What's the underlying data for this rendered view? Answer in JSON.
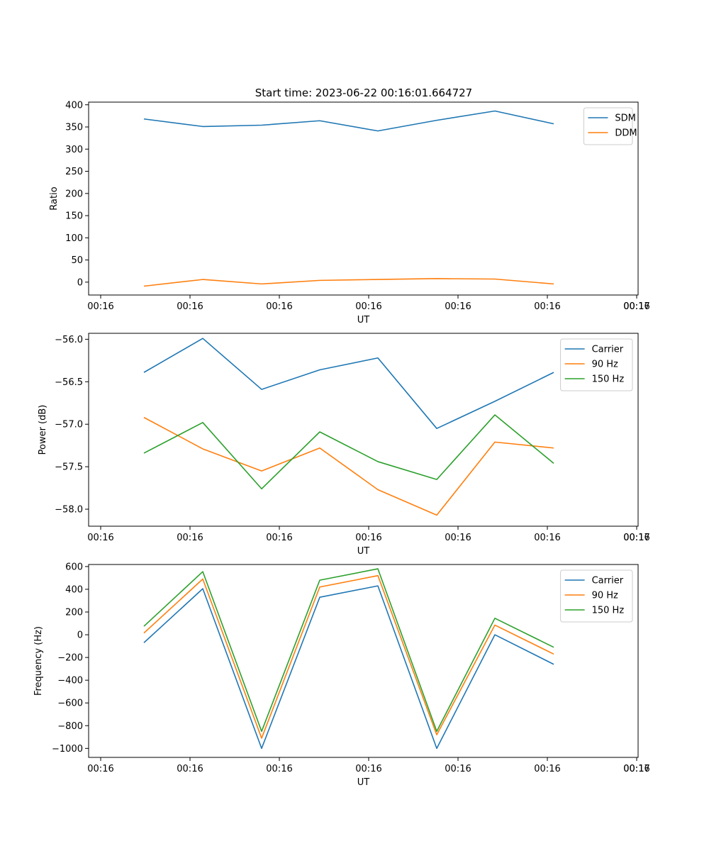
{
  "figure_title": "Start time: 2023-06-22 00:16:01.664727",
  "colors": {
    "blue": "#1f77b4",
    "orange": "#ff7f0e",
    "green": "#2ca02c"
  },
  "chart_data": [
    {
      "type": "line",
      "title": "Start time: 2023-06-22 00:16:01.664727",
      "xlabel": "UT",
      "ylabel": "Ratio",
      "x_tick_labels": [
        "00:16",
        "00:16",
        "00:16",
        "00:16",
        "00:16",
        "00:16",
        "00:16",
        "00:17"
      ],
      "y_ticks": [
        0,
        50,
        100,
        150,
        200,
        250,
        300,
        350,
        400
      ],
      "y_tick_labels": [
        "0",
        "50",
        "100",
        "150",
        "200",
        "250",
        "300",
        "350",
        "400"
      ],
      "ylim": [
        -29,
        406
      ],
      "legend_position": "top-right",
      "series": [
        {
          "name": "SDM",
          "values": [
            368,
            351,
            354,
            364,
            341,
            365,
            386,
            357
          ]
        },
        {
          "name": "DDM",
          "values": [
            -9,
            6,
            -4,
            4,
            6,
            8,
            7,
            -4
          ]
        }
      ]
    },
    {
      "type": "line",
      "title": "",
      "xlabel": "UT",
      "ylabel": "Power (dB)",
      "x_tick_labels": [
        "00:16",
        "00:16",
        "00:16",
        "00:16",
        "00:16",
        "00:16",
        "00:16",
        "00:17"
      ],
      "y_ticks": [
        -56.0,
        -56.5,
        -57.0,
        -57.5,
        -58.0
      ],
      "y_tick_labels": [
        "−56.0",
        "−56.5",
        "−57.0",
        "−57.5",
        "−58.0"
      ],
      "ylim": [
        -58.2,
        -55.93
      ],
      "legend_position": "top-right",
      "series": [
        {
          "name": "Carrier",
          "values": [
            -56.39,
            -55.99,
            -56.59,
            -56.36,
            -56.22,
            -57.05,
            -56.73,
            -56.39
          ]
        },
        {
          "name": "90 Hz",
          "values": [
            -56.92,
            -57.29,
            -57.55,
            -57.28,
            -57.77,
            -58.07,
            -57.21,
            -57.28
          ]
        },
        {
          "name": "150 Hz",
          "values": [
            -57.34,
            -56.98,
            -57.76,
            -57.09,
            -57.44,
            -57.65,
            -56.89,
            -57.46
          ]
        }
      ]
    },
    {
      "type": "line",
      "title": "",
      "xlabel": "UT",
      "ylabel": "Frequency (Hz)",
      "x_tick_labels": [
        "00:16",
        "00:16",
        "00:16",
        "00:16",
        "00:16",
        "00:16",
        "00:16",
        "00:17"
      ],
      "y_ticks": [
        600,
        400,
        200,
        0,
        -200,
        -400,
        -600,
        -800,
        -1000
      ],
      "y_tick_labels": [
        "600",
        "400",
        "200",
        "0",
        "−200",
        "−400",
        "−600",
        "−800",
        "−1000"
      ],
      "ylim": [
        -1079,
        618
      ],
      "legend_position": "top-right",
      "series": [
        {
          "name": "Carrier",
          "values": [
            -70,
            405,
            -1000,
            330,
            430,
            -1000,
            0,
            -260
          ]
        },
        {
          "name": "90 Hz",
          "values": [
            15,
            490,
            -910,
            420,
            520,
            -880,
            85,
            -170
          ]
        },
        {
          "name": "150 Hz",
          "values": [
            75,
            555,
            -850,
            480,
            580,
            -850,
            145,
            -110
          ]
        }
      ]
    }
  ]
}
